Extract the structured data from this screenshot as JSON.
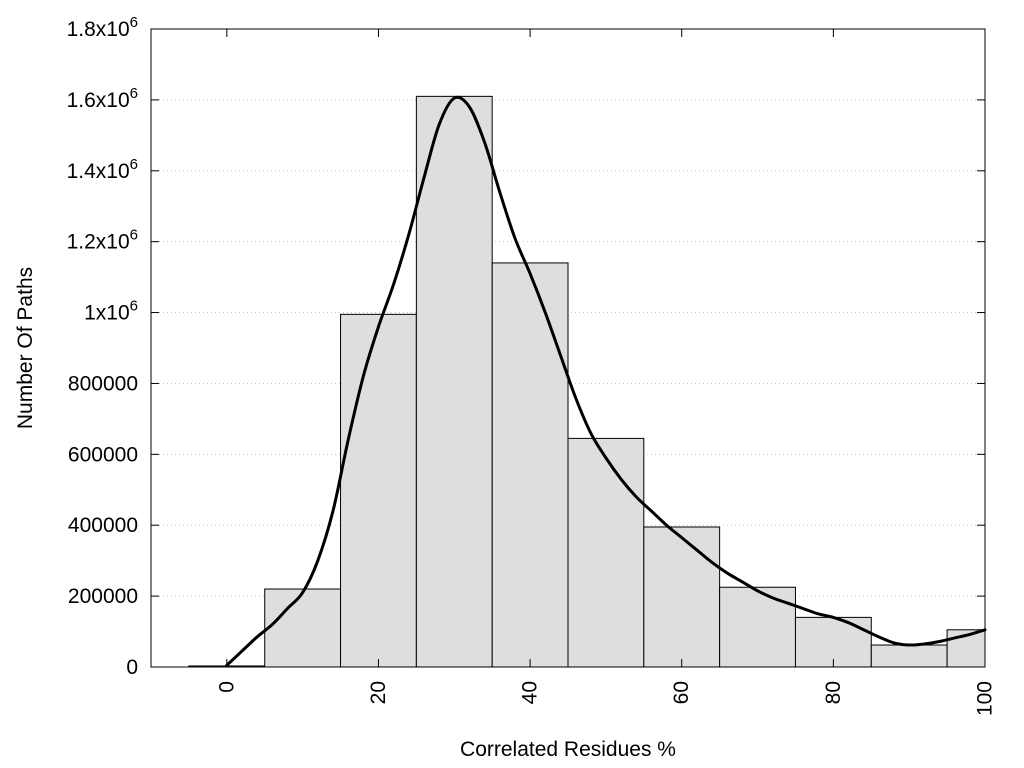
{
  "chart_data": {
    "type": "bar",
    "xlabel": "Correlated Residues %",
    "ylabel": "Number Of Paths",
    "xlim": [
      -10,
      100
    ],
    "ylim": [
      0,
      1800000
    ],
    "grid": true,
    "bar_fill": "#dedede",
    "bar_stroke": "#000000",
    "curve_color": "#000000",
    "x_ticks": [
      {
        "value": 0,
        "label": "0"
      },
      {
        "value": 20,
        "label": "20"
      },
      {
        "value": 40,
        "label": "40"
      },
      {
        "value": 60,
        "label": "60"
      },
      {
        "value": 80,
        "label": "80"
      },
      {
        "value": 100,
        "label": "100"
      }
    ],
    "y_ticks": [
      {
        "value": 0,
        "label": "0"
      },
      {
        "value": 200000,
        "label": "200000"
      },
      {
        "value": 400000,
        "label": "400000"
      },
      {
        "value": 600000,
        "label": "600000"
      },
      {
        "value": 800000,
        "label": "800000"
      },
      {
        "value": 1000000,
        "mantissa": "1x10",
        "exp": "6"
      },
      {
        "value": 1200000,
        "mantissa": "1.2x10",
        "exp": "6"
      },
      {
        "value": 1400000,
        "mantissa": "1.4x10",
        "exp": "6"
      },
      {
        "value": 1600000,
        "mantissa": "1.6x10",
        "exp": "6"
      },
      {
        "value": 1800000,
        "mantissa": "1.8x10",
        "exp": "6"
      }
    ],
    "bars": [
      {
        "x0": -5,
        "x1": 5,
        "value": 3000
      },
      {
        "x0": 5,
        "x1": 15,
        "value": 220000
      },
      {
        "x0": 15,
        "x1": 25,
        "value": 995000
      },
      {
        "x0": 25,
        "x1": 35,
        "value": 1610000
      },
      {
        "x0": 35,
        "x1": 45,
        "value": 1140000
      },
      {
        "x0": 45,
        "x1": 55,
        "value": 645000
      },
      {
        "x0": 55,
        "x1": 65,
        "value": 395000
      },
      {
        "x0": 65,
        "x1": 75,
        "value": 225000
      },
      {
        "x0": 75,
        "x1": 85,
        "value": 140000
      },
      {
        "x0": 85,
        "x1": 95,
        "value": 62000
      },
      {
        "x0": 95,
        "x1": 100,
        "value": 105000
      }
    ],
    "curve": [
      [
        0,
        5000
      ],
      [
        2,
        45000
      ],
      [
        4,
        85000
      ],
      [
        6,
        120000
      ],
      [
        8,
        165000
      ],
      [
        10,
        210000
      ],
      [
        12,
        300000
      ],
      [
        14,
        440000
      ],
      [
        16,
        640000
      ],
      [
        18,
        820000
      ],
      [
        20,
        960000
      ],
      [
        22,
        1080000
      ],
      [
        24,
        1220000
      ],
      [
        26,
        1380000
      ],
      [
        28,
        1530000
      ],
      [
        30,
        1605000
      ],
      [
        32,
        1580000
      ],
      [
        34,
        1480000
      ],
      [
        36,
        1340000
      ],
      [
        38,
        1210000
      ],
      [
        40,
        1110000
      ],
      [
        42,
        1000000
      ],
      [
        44,
        880000
      ],
      [
        46,
        760000
      ],
      [
        48,
        660000
      ],
      [
        50,
        590000
      ],
      [
        52,
        530000
      ],
      [
        54,
        480000
      ],
      [
        56,
        440000
      ],
      [
        58,
        400000
      ],
      [
        60,
        365000
      ],
      [
        62,
        330000
      ],
      [
        64,
        295000
      ],
      [
        66,
        265000
      ],
      [
        68,
        240000
      ],
      [
        70,
        215000
      ],
      [
        72,
        195000
      ],
      [
        74,
        180000
      ],
      [
        76,
        165000
      ],
      [
        78,
        150000
      ],
      [
        80,
        140000
      ],
      [
        82,
        125000
      ],
      [
        84,
        105000
      ],
      [
        86,
        85000
      ],
      [
        88,
        68000
      ],
      [
        90,
        62000
      ],
      [
        92,
        65000
      ],
      [
        94,
        72000
      ],
      [
        96,
        82000
      ],
      [
        98,
        92000
      ],
      [
        100,
        105000
      ]
    ]
  }
}
